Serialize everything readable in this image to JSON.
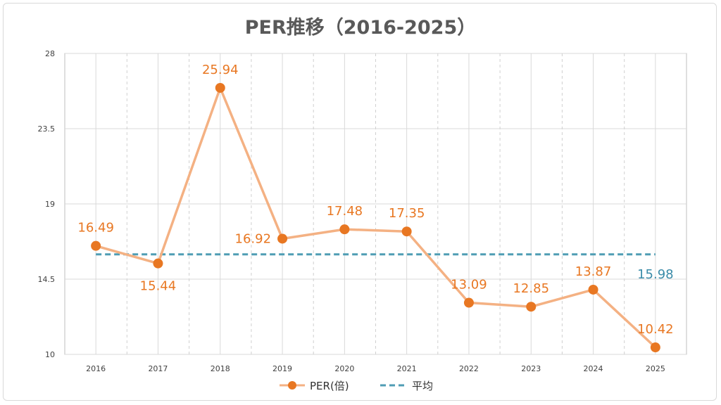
{
  "chart_data": {
    "type": "line",
    "title": "PER推移（2016-2025）",
    "categories": [
      "2016",
      "2017",
      "2018",
      "2019",
      "2020",
      "2021",
      "2022",
      "2023",
      "2024",
      "2025"
    ],
    "series": [
      {
        "name": "PER(倍)",
        "values": [
          16.49,
          15.44,
          25.94,
          16.92,
          17.48,
          17.35,
          13.09,
          12.85,
          13.87,
          10.42
        ],
        "labels": [
          "16.49",
          "15.44",
          "25.94",
          "16.92",
          "17.48",
          "17.35",
          "13.09",
          "12.85",
          "13.87",
          "10.42"
        ],
        "line_color": "#f4b183",
        "marker_color": "#e87722"
      },
      {
        "name": "平均",
        "value": 15.98,
        "label": "15.98",
        "color": "#4f9db4",
        "style": "dashed"
      }
    ],
    "ylim": [
      10,
      28
    ],
    "yticks": [
      "10",
      "14.5",
      "19",
      "23.5",
      "28"
    ],
    "grid": true,
    "legend": "bottom"
  }
}
